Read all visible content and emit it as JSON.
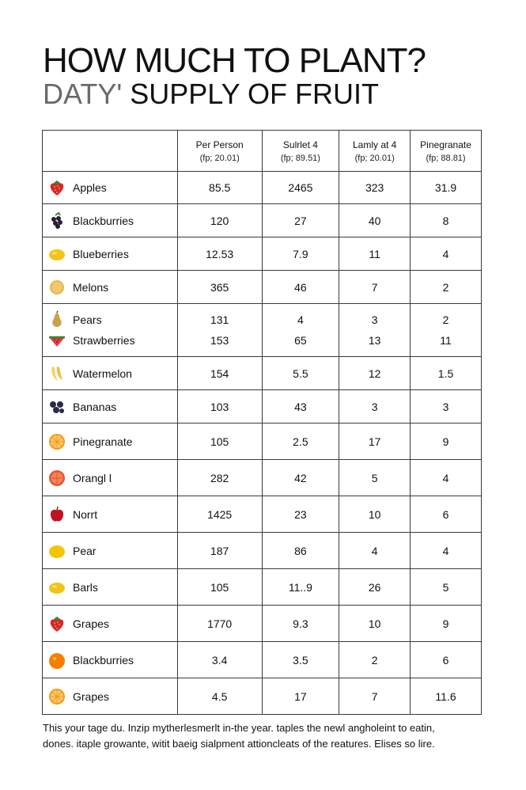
{
  "title": {
    "line1": "HOW MUCH TO PLANT?",
    "line2_light": "DATY'",
    "line2_bold": "SUPPLY OF FRUIT"
  },
  "table": {
    "headers": [
      {
        "label": "",
        "sub": ""
      },
      {
        "label": "Per Person",
        "sub": "(fp; 20.01)"
      },
      {
        "label": "Sulrlet 4",
        "sub": "(fp; 89.51)"
      },
      {
        "label": "Lamly at 4",
        "sub": "(fp; 20.01)"
      },
      {
        "label": "Pinegranate",
        "sub": "(fp; 88.81)"
      }
    ],
    "rows": [
      {
        "items": [
          {
            "name": "Apples",
            "icon": "strawberry-icon"
          }
        ],
        "values": [
          [
            "85.5"
          ],
          [
            "2465"
          ],
          [
            "323"
          ],
          [
            "31.9"
          ]
        ]
      },
      {
        "items": [
          {
            "name": "Blackburries",
            "icon": "blackberry-icon"
          }
        ],
        "values": [
          [
            "120"
          ],
          [
            "27"
          ],
          [
            "40"
          ],
          [
            "8"
          ]
        ]
      },
      {
        "items": [
          {
            "name": "Blueberries",
            "icon": "lemon-icon"
          }
        ],
        "values": [
          [
            "12.53"
          ],
          [
            "7.9"
          ],
          [
            "11"
          ],
          [
            "4"
          ]
        ]
      },
      {
        "items": [
          {
            "name": "Melons",
            "icon": "melon-icon"
          }
        ],
        "values": [
          [
            "365"
          ],
          [
            "46"
          ],
          [
            "7"
          ],
          [
            "2"
          ]
        ]
      },
      {
        "items": [
          {
            "name": "Pears",
            "icon": "pear-icon"
          },
          {
            "name": "Strawberries",
            "icon": "watermelon-icon"
          }
        ],
        "values": [
          [
            "131",
            "153"
          ],
          [
            "4",
            "65"
          ],
          [
            "3",
            "13"
          ],
          [
            "2",
            "11"
          ]
        ]
      },
      {
        "items": [
          {
            "name": "Watermelon",
            "icon": "banana-icon"
          }
        ],
        "values": [
          [
            "154"
          ],
          [
            "5.5"
          ],
          [
            "12"
          ],
          [
            "1.5"
          ]
        ]
      },
      {
        "items": [
          {
            "name": "Bananas",
            "icon": "blueberry-icon"
          }
        ],
        "values": [
          [
            "103"
          ],
          [
            "43"
          ],
          [
            "3"
          ],
          [
            "3"
          ]
        ]
      },
      {
        "items": [
          {
            "name": "Pinegranate",
            "icon": "orange-slice-icon"
          }
        ],
        "values": [
          [
            "105"
          ],
          [
            "2.5"
          ],
          [
            "17"
          ],
          [
            "9"
          ]
        ]
      },
      {
        "items": [
          {
            "name": "Orangl l",
            "icon": "grapefruit-icon"
          }
        ],
        "values": [
          [
            "282"
          ],
          [
            "42"
          ],
          [
            "5"
          ],
          [
            "4"
          ]
        ]
      },
      {
        "items": [
          {
            "name": "Norrt",
            "icon": "apple-icon"
          }
        ],
        "values": [
          [
            "1425"
          ],
          [
            "23"
          ],
          [
            "10"
          ],
          [
            "6"
          ]
        ]
      },
      {
        "items": [
          {
            "name": "Pear",
            "icon": "yellow-fruit-icon"
          }
        ],
        "values": [
          [
            "187"
          ],
          [
            "86"
          ],
          [
            "4"
          ],
          [
            "4"
          ]
        ]
      },
      {
        "items": [
          {
            "name": "Barls",
            "icon": "lemon-icon"
          }
        ],
        "values": [
          [
            "105"
          ],
          [
            "11..9"
          ],
          [
            "26"
          ],
          [
            "5"
          ]
        ]
      },
      {
        "items": [
          {
            "name": "Grapes",
            "icon": "strawberry-icon"
          }
        ],
        "values": [
          [
            "1770"
          ],
          [
            "9.3"
          ],
          [
            "10"
          ],
          [
            "9"
          ]
        ]
      },
      {
        "items": [
          {
            "name": "Blackburries",
            "icon": "orange-icon"
          }
        ],
        "values": [
          [
            "3.4"
          ],
          [
            "3.5"
          ],
          [
            "2"
          ],
          [
            "6"
          ]
        ]
      },
      {
        "items": [
          {
            "name": "Grapes",
            "icon": "orange-slice-icon"
          }
        ],
        "values": [
          [
            "4.5"
          ],
          [
            "17"
          ],
          [
            "7"
          ],
          [
            "11.6"
          ]
        ]
      }
    ]
  },
  "footer": {
    "line1": "This your tage du. Inzip mytherlesmerlt in-the year. taples the newl angholeint to eatin,",
    "line2": "dones. itaple growante, witit baeig sialpment attioncleats of the reatures. Elises so lire."
  }
}
